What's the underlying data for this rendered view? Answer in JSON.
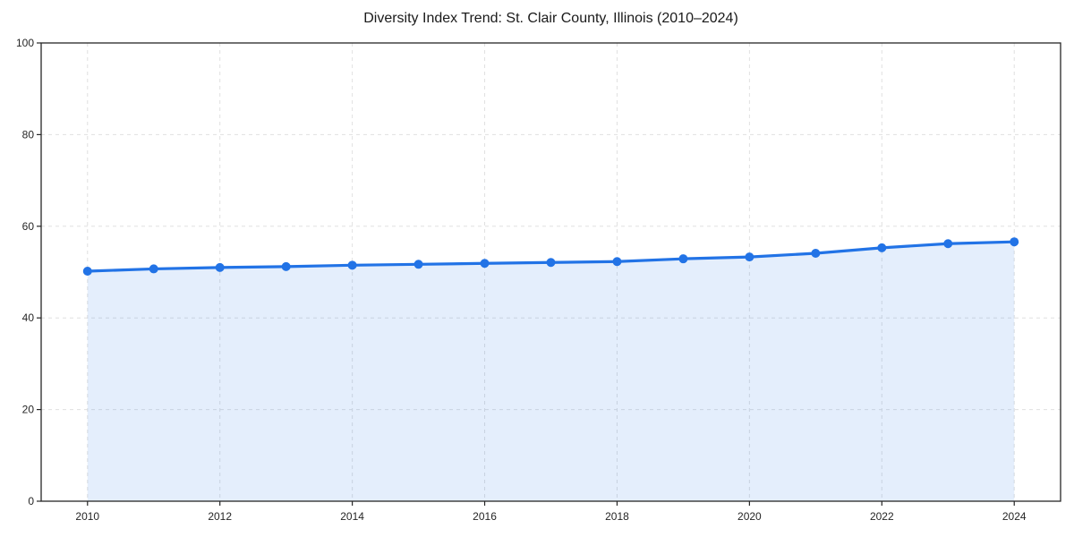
{
  "colors": {
    "line": "#2273e6",
    "marker": "#2273e6",
    "fill": "rgba(34, 115, 230, 0.12)",
    "grid": "#e0e0e0",
    "spine": "#262626",
    "tick": "#262626",
    "text": "#262626",
    "background": "#ffffff"
  },
  "chart_data": {
    "type": "area",
    "title": "Diversity Index Trend: St. Clair County, Illinois (2010–2024)",
    "x": [
      2010,
      2011,
      2012,
      2013,
      2014,
      2015,
      2016,
      2017,
      2018,
      2019,
      2020,
      2021,
      2022,
      2023,
      2024
    ],
    "values": [
      50.2,
      50.7,
      51.0,
      51.2,
      51.5,
      51.7,
      51.9,
      52.1,
      52.3,
      52.9,
      53.3,
      54.1,
      55.3,
      56.2,
      56.6
    ],
    "xlabel": "",
    "ylabel": "",
    "xlim": [
      2009.3,
      2024.7
    ],
    "ylim": [
      0,
      100
    ],
    "xticks": [
      2010,
      2012,
      2014,
      2016,
      2018,
      2020,
      2022,
      2024
    ],
    "yticks": [
      0,
      20,
      40,
      60,
      80,
      100
    ],
    "grid": true,
    "grid_style": "dashed",
    "legend": "none",
    "marker": "circle",
    "line_width": 3.2,
    "marker_radius": 5
  }
}
